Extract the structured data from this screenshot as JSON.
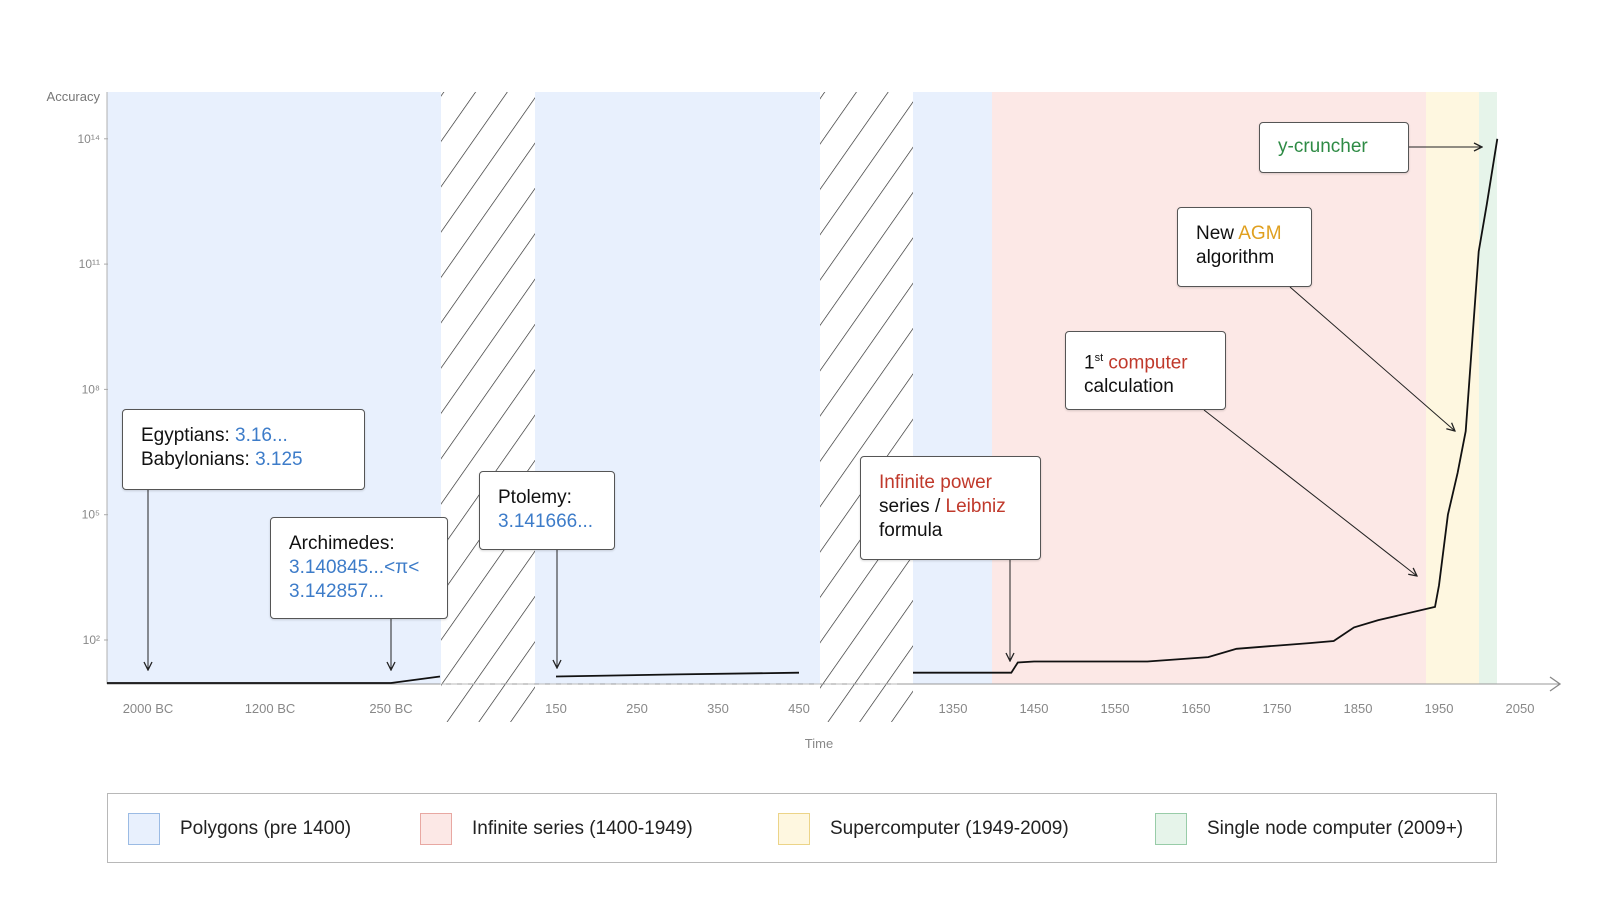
{
  "chart_data": {
    "type": "line",
    "title": "",
    "xlabel": "Time",
    "ylabel": "Accuracy",
    "y_scale": "log",
    "y_ticks": [
      {
        "exp": 2,
        "label": "10²"
      },
      {
        "exp": 5,
        "label": "10⁵"
      },
      {
        "exp": 8,
        "label": "10⁸"
      },
      {
        "exp": 11,
        "label": "10¹¹"
      },
      {
        "exp": 14,
        "label": "10¹⁴"
      }
    ],
    "x_axis_breaks": [
      "250 BC to 150",
      "450 to 1350"
    ],
    "x_ticks": [
      {
        "label": "2000 BC",
        "year": -2000
      },
      {
        "label": "1200 BC",
        "year": -1200
      },
      {
        "label": "250 BC",
        "year": -250
      },
      {
        "label": "150",
        "year": 150
      },
      {
        "label": "250",
        "year": 250
      },
      {
        "label": "350",
        "year": 350
      },
      {
        "label": "450",
        "year": 450
      },
      {
        "label": "1350",
        "year": 1350
      },
      {
        "label": "1450",
        "year": 1450
      },
      {
        "label": "1550",
        "year": 1550
      },
      {
        "label": "1650",
        "year": 1650
      },
      {
        "label": "1750",
        "year": 1750
      },
      {
        "label": "1850",
        "year": 1850
      },
      {
        "label": "1950",
        "year": 1950
      },
      {
        "label": "2050",
        "year": 2050
      }
    ],
    "series": [
      {
        "points": [
          {
            "x": -2000,
            "y": 1
          },
          {
            "x": -250,
            "y": 1
          },
          {
            "x": -150,
            "y": 2
          },
          {
            "x": 150,
            "y": 2
          },
          {
            "x": 300,
            "y": 2.5
          },
          {
            "x": 450,
            "y": 3
          },
          {
            "x": 1350,
            "y": 3
          },
          {
            "x": 1422,
            "y": 3
          },
          {
            "x": 1430,
            "y": 9
          },
          {
            "x": 1450,
            "y": 10
          },
          {
            "x": 1590,
            "y": 10
          },
          {
            "x": 1665,
            "y": 16
          },
          {
            "x": 1700,
            "y": 39
          },
          {
            "x": 1750,
            "y": 55
          },
          {
            "x": 1790,
            "y": 72
          },
          {
            "x": 1820,
            "y": 90
          },
          {
            "x": 1845,
            "y": 200
          },
          {
            "x": 1875,
            "y": 300
          },
          {
            "x": 1945,
            "y": 620
          },
          {
            "x": 1950,
            "y": 2037
          },
          {
            "x": 1961,
            "y": 100000
          },
          {
            "x": 1973,
            "y": 1000000
          },
          {
            "x": 1983,
            "y": 10000000
          },
          {
            "x": 1999,
            "y": 200000000000
          },
          {
            "x": 2009,
            "y": 2700000000000
          },
          {
            "x": 2022,
            "y": 100000000000000
          }
        ]
      }
    ],
    "regions": [
      {
        "label": "Polygons (pre 1400)",
        "color": "#e8f0fd",
        "border": "#9bbbe4"
      },
      {
        "label": "Infinite series (1400-1949)",
        "color": "#fce8e6",
        "border": "#e8a8a2"
      },
      {
        "label": "Supercomputer (1949-2009)",
        "color": "#fef7e0",
        "border": "#ecd488"
      },
      {
        "label": "Single node computer (2009+)",
        "color": "#e6f4ea",
        "border": "#98cca8"
      }
    ],
    "legend_position": "bottom",
    "grid": false,
    "annotations": [
      {
        "id": "egyptians",
        "line1_a": "Egyptians: ",
        "line1_b": "3.16...",
        "line2_a": "Babylonians: ",
        "line2_b": "3.125"
      },
      {
        "id": "archimedes",
        "line1": "Archimedes:",
        "line2": "3.140845...<π<",
        "line3": "3.142857..."
      },
      {
        "id": "ptolemy",
        "line1": "Ptolemy:",
        "line2": "3.141666..."
      },
      {
        "id": "leibniz",
        "line1": "Infinite power",
        "line2_a": "series / ",
        "line2_b": "Leibniz",
        "line3": "formula"
      },
      {
        "id": "computer",
        "line1_a": "1",
        "line1_sup": "st",
        "line1_b": " computer",
        "line2": "calculation"
      },
      {
        "id": "agm",
        "line1_a": "New ",
        "line1_b": "AGM",
        "line2": "algorithm"
      },
      {
        "id": "ycruncher",
        "text": "y-cruncher"
      }
    ]
  }
}
